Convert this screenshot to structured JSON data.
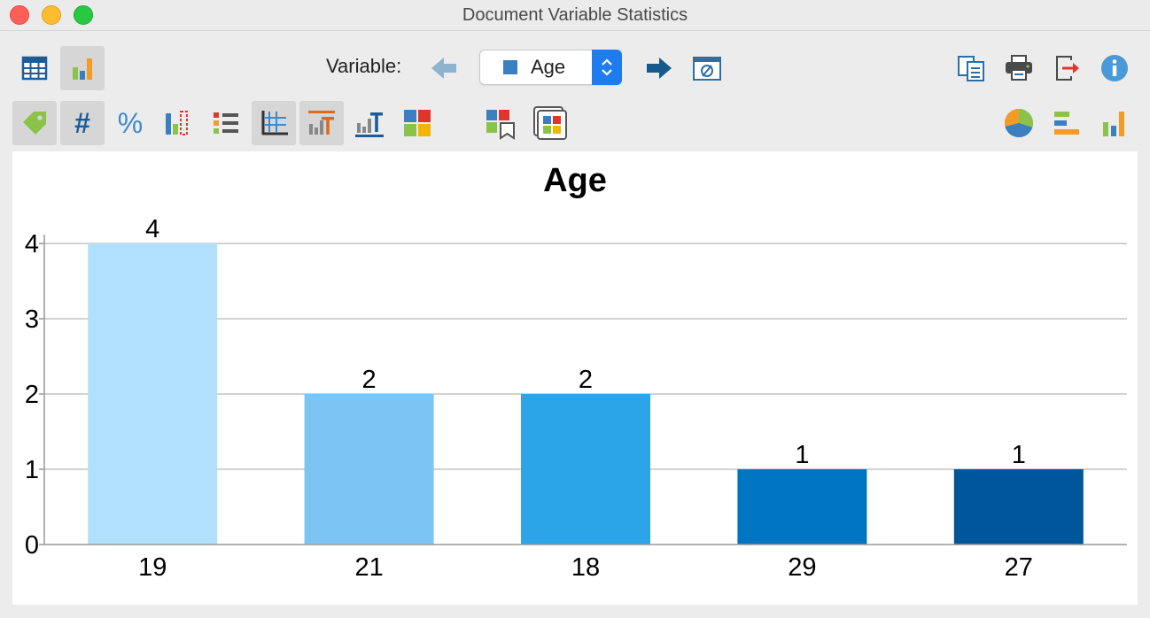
{
  "window": {
    "title": "Document Variable Statistics"
  },
  "toolbar": {
    "variable_label": "Variable:",
    "variable_value": "Age",
    "variable_color": "#3a7fbf"
  },
  "icons": {
    "table_view": "table-icon",
    "chart_view": "bar-chart-icon",
    "prev": "arrow-left-icon",
    "next": "arrow-right-icon",
    "filter": "no-filter-icon",
    "copy": "copy-icon",
    "print": "print-icon",
    "export": "export-icon",
    "info": "info-icon",
    "label": "tag-icon",
    "absolute": "hash-icon",
    "percent": "percent-icon",
    "missing": "missing-values-icon",
    "legend": "legend-icon",
    "gridlines": "gridlines-icon",
    "title_toggle": "chart-title-icon",
    "axis_labels": "axis-labels-icon",
    "colors": "colors-icon",
    "bookmark": "bookmark-chart-icon",
    "gallery": "gallery-icon",
    "pie": "pie-chart-icon",
    "hbar": "horizontal-bar-icon",
    "vbar": "vertical-bar-icon"
  },
  "chart_data": {
    "type": "bar",
    "title": "Age",
    "categories": [
      "19",
      "21",
      "18",
      "29",
      "27"
    ],
    "values": [
      4,
      2,
      2,
      1,
      1
    ],
    "colors": [
      "#b0e0fc",
      "#7bc4f4",
      "#2ba4e8",
      "#0075c2",
      "#00569a"
    ],
    "ylim": [
      0,
      4
    ],
    "yticks": [
      "0",
      "1",
      "2",
      "3",
      "4"
    ],
    "grid": true,
    "data_labels": true
  }
}
